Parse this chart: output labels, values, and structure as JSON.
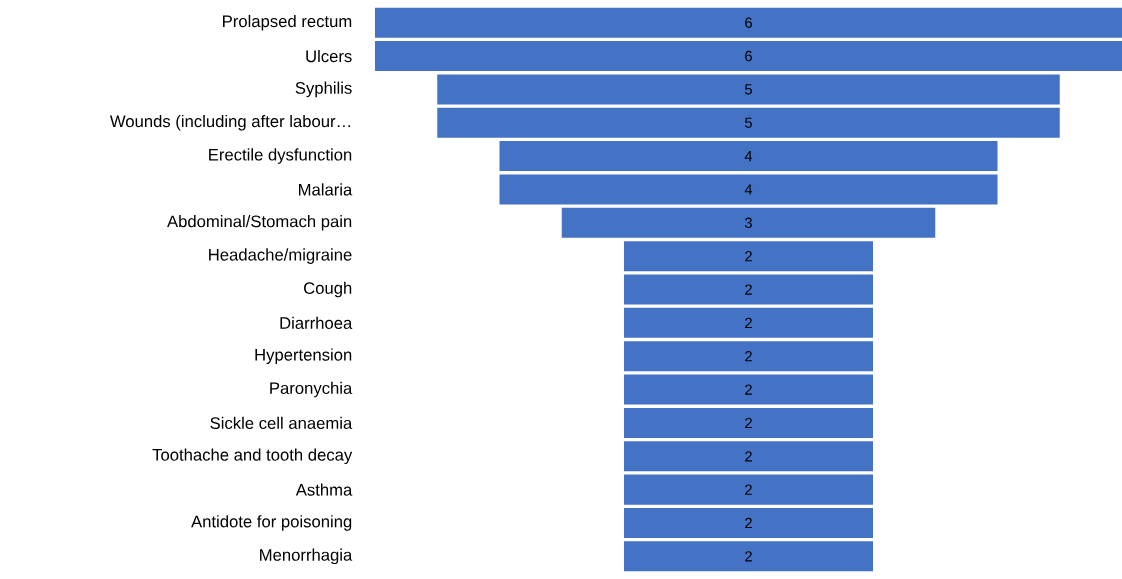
{
  "chart_data": {
    "type": "other",
    "categories": [
      "Prolapsed rectum",
      "Ulcers",
      "Syphilis",
      "Wounds (including after labour…",
      "Erectile dysfunction",
      "Malaria",
      "Abdominal/Stomach pain",
      "Headache/migraine",
      "Cough",
      "Diarrhoea",
      "Hypertension",
      "Paronychia",
      "Sickle cell anaemia",
      "Toothache and tooth decay",
      "Asthma",
      "Antidote for poisoning",
      "Menorrhagia"
    ],
    "values": [
      6,
      6,
      5,
      5,
      4,
      4,
      3,
      2,
      2,
      2,
      2,
      2,
      2,
      2,
      2,
      2,
      2
    ],
    "color": "#4472c4",
    "data_labels": true
  }
}
